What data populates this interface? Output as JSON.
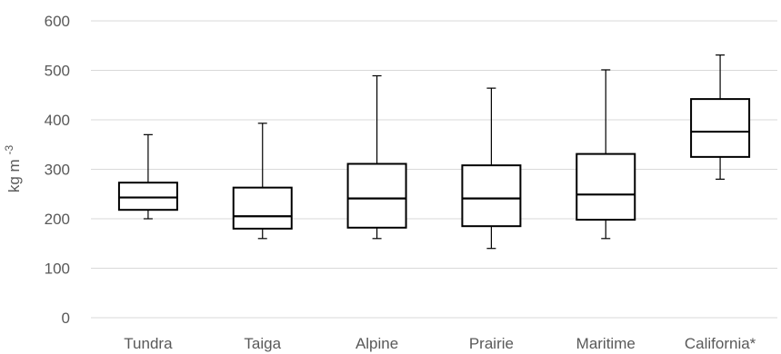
{
  "chart_data": {
    "type": "boxplot",
    "title": "",
    "xlabel": "",
    "ylabel": {
      "base": "kg m",
      "superscript": "-3"
    },
    "ylim": [
      0,
      600
    ],
    "yticks": [
      0,
      100,
      200,
      300,
      400,
      500,
      600
    ],
    "grid": true,
    "legend": "none",
    "categories": [
      "Tundra",
      "Taiga",
      "Alpine",
      "Prairie",
      "Maritime",
      "California*"
    ],
    "series": [
      {
        "min": [
          200,
          160,
          160,
          140,
          160,
          280
        ],
        "q1": [
          218,
          180,
          182,
          185,
          198,
          325
        ],
        "median": [
          243,
          205,
          241,
          241,
          249,
          376
        ],
        "q3": [
          273,
          263,
          311,
          308,
          331,
          442
        ],
        "max": [
          370,
          393,
          489,
          464,
          501,
          531
        ]
      }
    ],
    "colors": {
      "box_edge": "#000000",
      "box_fill": "#ffffff",
      "grid": "#d9d9d9",
      "text": "#595959"
    }
  }
}
